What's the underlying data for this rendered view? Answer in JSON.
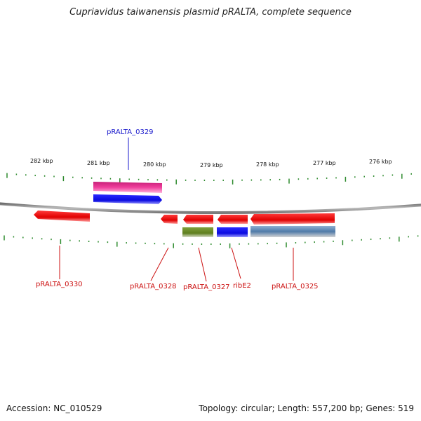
{
  "title": "Cupriavidus taiwanensis plasmid pRALTA, complete sequence",
  "footer": {
    "accession": "Accession: NC_010529",
    "stats": "Topology: circular; Length: 557,200 bp; Genes: 519"
  },
  "scale": {
    "unit": "kbp",
    "ticks": [
      "282 kbp",
      "281 kbp",
      "280 kbp",
      "279 kbp",
      "278 kbp",
      "277 kbp",
      "276 kbp"
    ]
  },
  "genes": {
    "top_label": "pRALTA_0329",
    "bottom_labels": [
      "pRALTA_0330",
      "pRALTA_0328",
      "pRALTA_0327",
      "ribE2",
      "pRALTA_0325"
    ]
  },
  "colors": {
    "backbone": "#8c8c8c",
    "tick": "#2e8b2e",
    "gene_red": "#ee1111",
    "gene_pink": "#e8409a",
    "gene_blue": "#1a1aee",
    "gene_olive": "#6b8e23",
    "gene_steel": "#5b84b1",
    "label_blue": "#1a1acc",
    "label_red": "#cc1111"
  }
}
